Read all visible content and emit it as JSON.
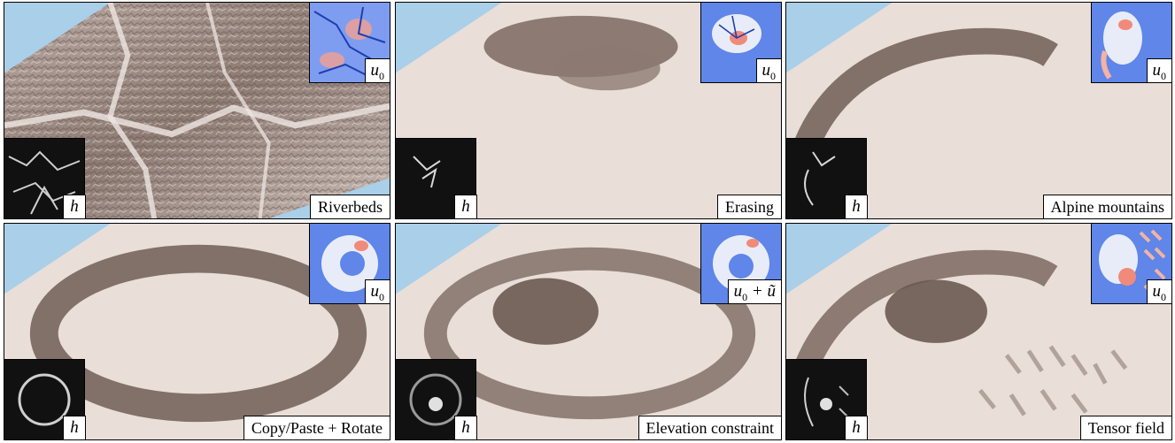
{
  "panels": [
    {
      "caption": "Riverbeds",
      "u_label": "u",
      "u_sub": "0",
      "u_extra": "",
      "h_label": "h"
    },
    {
      "caption": "Erasing",
      "u_label": "u",
      "u_sub": "0",
      "u_extra": "",
      "h_label": "h"
    },
    {
      "caption": "Alpine mountains",
      "u_label": "u",
      "u_sub": "0",
      "u_extra": "",
      "h_label": "h"
    },
    {
      "caption": "Copy/Paste + Rotate",
      "u_label": "u",
      "u_sub": "0",
      "u_extra": "",
      "h_label": "h"
    },
    {
      "caption": "Elevation constraint",
      "u_label": "u",
      "u_sub": "0",
      "u_extra": " + ũ",
      "h_label": "h"
    },
    {
      "caption": "Tensor field",
      "u_label": "u",
      "u_sub": "0",
      "u_extra": "",
      "h_label": "h"
    }
  ],
  "colors": {
    "terrain_light": "#e9ded8",
    "terrain_dark": "#6b5a52",
    "sky": "#a9cfe9",
    "u_inset_blue": "#5f86e8",
    "u_inset_river": "#1d3fb0",
    "u_inset_high": "#f08a7a"
  }
}
